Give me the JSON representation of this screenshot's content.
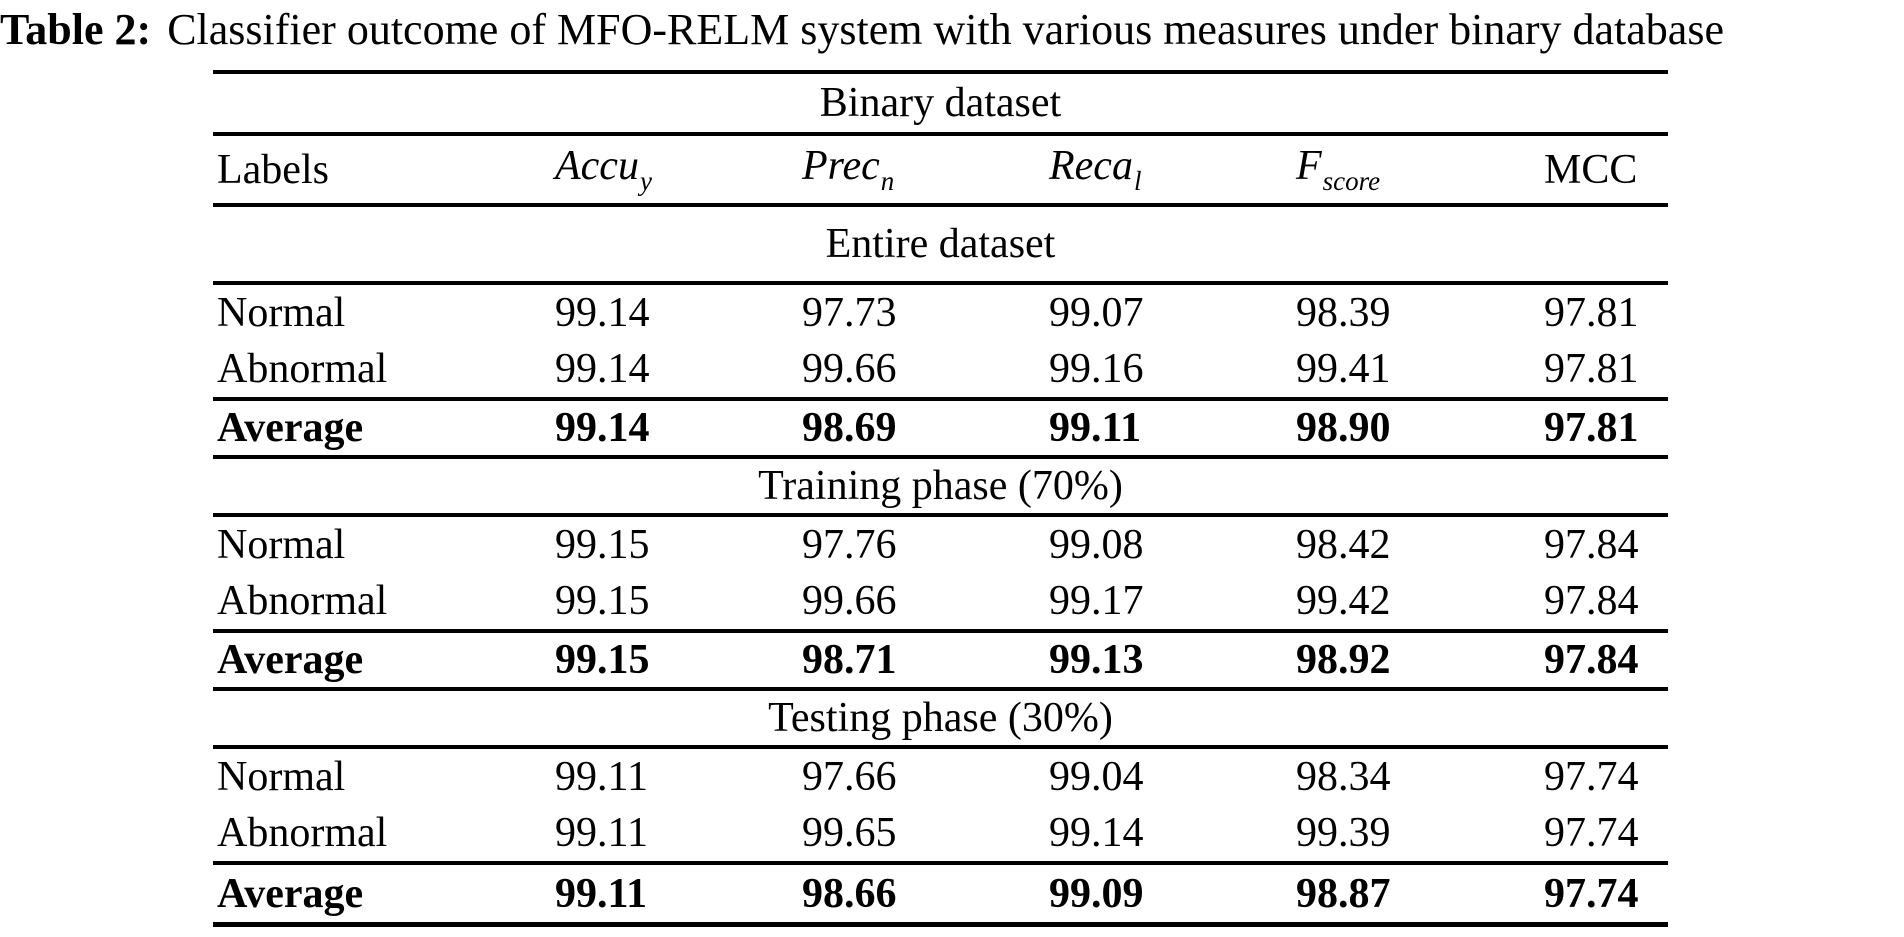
{
  "title": {
    "label": "Table 2:",
    "caption": "Classifier outcome of MFO-RELM system with various measures under binary database"
  },
  "table": {
    "span_header": "Binary dataset",
    "columns": [
      {
        "label": "Labels",
        "sub": ""
      },
      {
        "label": "Accu",
        "sub": "y"
      },
      {
        "label": "Prec",
        "sub": "n"
      },
      {
        "label": "Reca",
        "sub": "l"
      },
      {
        "label": "F",
        "sub": "score"
      },
      {
        "label": "MCC",
        "sub": ""
      }
    ],
    "sections": [
      {
        "header": "Entire dataset",
        "rows": [
          {
            "label": "Normal",
            "bold": false,
            "values": [
              "99.14",
              "97.73",
              "99.07",
              "98.39",
              "97.81"
            ]
          },
          {
            "label": "Abnormal",
            "bold": false,
            "values": [
              "99.14",
              "99.66",
              "99.16",
              "99.41",
              "97.81"
            ]
          },
          {
            "label": "Average",
            "bold": true,
            "values": [
              "99.14",
              "98.69",
              "99.11",
              "98.90",
              "97.81"
            ]
          }
        ]
      },
      {
        "header": "Training phase (70%)",
        "rows": [
          {
            "label": "Normal",
            "bold": false,
            "values": [
              "99.15",
              "97.76",
              "99.08",
              "98.42",
              "97.84"
            ]
          },
          {
            "label": "Abnormal",
            "bold": false,
            "values": [
              "99.15",
              "99.66",
              "99.17",
              "99.42",
              "97.84"
            ]
          },
          {
            "label": "Average",
            "bold": true,
            "values": [
              "99.15",
              "98.71",
              "99.13",
              "98.92",
              "97.84"
            ]
          }
        ]
      },
      {
        "header": "Testing phase (30%)",
        "rows": [
          {
            "label": "Normal",
            "bold": false,
            "values": [
              "99.11",
              "97.66",
              "99.04",
              "98.34",
              "97.74"
            ]
          },
          {
            "label": "Abnormal",
            "bold": false,
            "values": [
              "99.11",
              "99.65",
              "99.14",
              "99.39",
              "97.74"
            ]
          },
          {
            "label": "Average",
            "bold": true,
            "values": [
              "99.11",
              "98.66",
              "99.09",
              "98.87",
              "97.74"
            ]
          }
        ]
      }
    ],
    "colors": {
      "text": "#000000",
      "background": "#ffffff",
      "rule": "#000000"
    }
  }
}
